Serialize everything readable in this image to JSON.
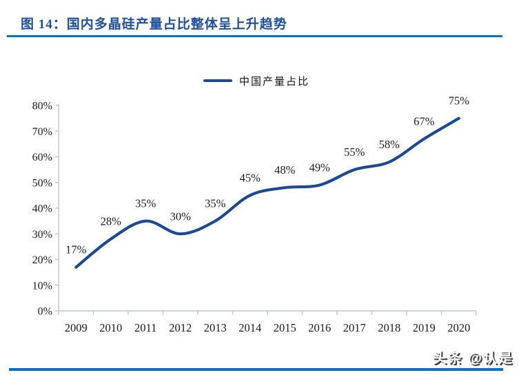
{
  "figure": {
    "title": "图 14：国内多晶硅产量占比整体呈上升趋势",
    "watermark": "头条 @认是"
  },
  "colors": {
    "title_blue": "#1F4E9E",
    "rule_blue": "#0070C0",
    "series_blue": "#1B4A94",
    "axis_gray": "#C2C6CE",
    "label_black": "#1A1A1A"
  },
  "chart_data": {
    "type": "line",
    "title": "",
    "legend": [
      "中国产量占比"
    ],
    "legend_position": "top-center",
    "categories": [
      "2009",
      "2010",
      "2011",
      "2012",
      "2013",
      "2014",
      "2015",
      "2016",
      "2017",
      "2018",
      "2019",
      "2020"
    ],
    "series": [
      {
        "name": "中国产量占比",
        "values": [
          17,
          28,
          35,
          30,
          35,
          45,
          48,
          49,
          55,
          58,
          67,
          75
        ]
      }
    ],
    "data_labels": [
      "17%",
      "28%",
      "35%",
      "30%",
      "35%",
      "45%",
      "48%",
      "49%",
      "55%",
      "58%",
      "67%",
      "75%"
    ],
    "xlabel": "",
    "ylabel": "",
    "ylim": [
      0,
      80
    ],
    "ytick_step": 10,
    "ytick_format": "percent",
    "grid": false,
    "smooth": true
  }
}
